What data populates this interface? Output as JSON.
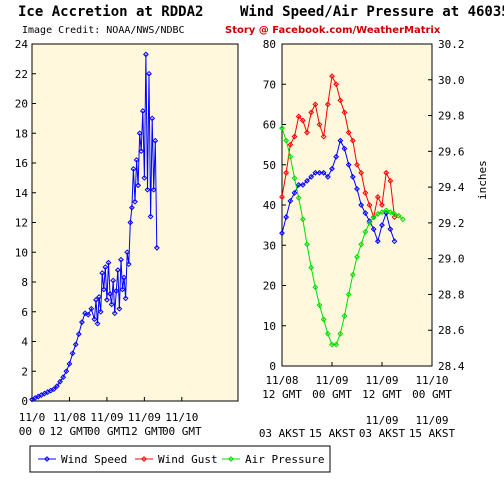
{
  "header": {
    "title_left": "Ice Accretion at RDDA2",
    "title_right": "Wind Speed/Air Pressure at 46035",
    "credit": "Image Credit: NOAA/NWS/NDBC",
    "story": "Story @ Facebook.com/WeatherMatrix"
  },
  "colors": {
    "plot_bg": "#fff8dc",
    "ice": "#0000ff",
    "wind_speed": "#0000ff",
    "wind_gust": "#ff0000",
    "air_pressure": "#00dd00",
    "story": "#cc0000"
  },
  "chart_data": [
    {
      "type": "line",
      "title": "Ice Accretion at RDDA2",
      "xlabel": "",
      "ylabel": "",
      "ylim": [
        0,
        24
      ],
      "yticks": [
        0,
        2,
        4,
        6,
        8,
        10,
        12,
        14,
        16,
        18,
        20,
        22,
        24
      ],
      "xlim_hours": [
        0,
        66
      ],
      "xticks": [
        {
          "hour": 0,
          "label1": "11/0",
          "label2": "00 0"
        },
        {
          "hour": 12,
          "label1": "11/08",
          "label2": "12 GMT"
        },
        {
          "hour": 24,
          "label1": "11/09",
          "label2": "00 GMT"
        },
        {
          "hour": 36,
          "label1": "11/09",
          "label2": "12 GMT"
        },
        {
          "hour": 48,
          "label1": "11/10",
          "label2": "00 GMT"
        }
      ],
      "grid": false,
      "series": [
        {
          "x": [
            0,
            1,
            2,
            3,
            4,
            5,
            6,
            7,
            8,
            9,
            10,
            11,
            12,
            13,
            14,
            15,
            16,
            17,
            18,
            19,
            20,
            20.5,
            21,
            21.5,
            22,
            22.5,
            23,
            23.5,
            24,
            24.5,
            25,
            25.5,
            26,
            26.5,
            27,
            27.5,
            28,
            28.5,
            29,
            29.5,
            30,
            30.5,
            31,
            31.5,
            32,
            32.5,
            33,
            33.5,
            34,
            34.5,
            35,
            35.5,
            36,
            36.5,
            37,
            37.5,
            38,
            38.5,
            39,
            39.5,
            40
          ],
          "values": [
            0.1,
            0.2,
            0.3,
            0.4,
            0.5,
            0.6,
            0.7,
            0.8,
            1.0,
            1.3,
            1.6,
            2.0,
            2.5,
            3.2,
            3.8,
            4.5,
            5.3,
            5.9,
            5.8,
            6.2,
            5.5,
            6.8,
            5.2,
            7.0,
            6.0,
            8.6,
            7.5,
            9.0,
            6.8,
            9.3,
            7.2,
            6.5,
            8.1,
            5.9,
            7.4,
            8.8,
            6.2,
            9.5,
            7.5,
            8.3,
            6.9,
            10.0,
            9.2,
            12.0,
            13.0,
            15.6,
            13.4,
            16.2,
            14.5,
            18.0,
            16.8,
            19.5,
            15.0,
            23.3,
            14.2,
            22.0,
            12.4,
            19.0,
            14.2,
            17.5,
            10.3
          ]
        }
      ]
    },
    {
      "type": "line",
      "title": "Wind Speed/Air Pressure at 46035",
      "xlabel": "",
      "ylabel": "",
      "y2label": "inches",
      "ylim": [
        0,
        80
      ],
      "yticks": [
        0,
        10,
        20,
        30,
        40,
        50,
        60,
        70,
        80
      ],
      "y2lim": [
        28.4,
        30.2
      ],
      "y2ticks": [
        28.4,
        28.6,
        28.8,
        29.0,
        29.2,
        29.4,
        29.6,
        29.8,
        30.0,
        30.2
      ],
      "xlim_hours": [
        0,
        36
      ],
      "xticks": [
        {
          "hour": 0,
          "label1": "11/08",
          "label2": "12 GMT",
          "label3": "",
          "label4": "03 AKST"
        },
        {
          "hour": 12,
          "label1": "11/09",
          "label2": "00 GMT",
          "label3": "",
          "label4": "15 AKST"
        },
        {
          "hour": 24,
          "label1": "11/09",
          "label2": "12 GMT",
          "label3": "11/09",
          "label4": "03 AKST"
        },
        {
          "hour": 36,
          "label1": "11/10",
          "label2": "00 GMT",
          "label3": "11/09",
          "label4": "15 AKST"
        }
      ],
      "legend_position": "bottom",
      "grid": false,
      "series": [
        {
          "name": "Wind Speed",
          "axis": "left",
          "x": [
            0,
            1,
            2,
            3,
            4,
            5,
            6,
            7,
            8,
            9,
            10,
            11,
            12,
            13,
            14,
            15,
            16,
            17,
            18,
            19,
            20,
            21,
            22,
            23,
            24,
            25,
            26,
            27
          ],
          "values": [
            33,
            37,
            41,
            43,
            45,
            45,
            46,
            47,
            48,
            48,
            48,
            47,
            49,
            52,
            56,
            54,
            50,
            47,
            44,
            40,
            38,
            36,
            34,
            31,
            35,
            38,
            34,
            31
          ]
        },
        {
          "name": "Wind Gust",
          "axis": "left",
          "x": [
            0,
            1,
            2,
            3,
            4,
            5,
            6,
            7,
            8,
            9,
            10,
            11,
            12,
            13,
            14,
            15,
            16,
            17,
            18,
            19,
            20,
            21,
            22,
            23,
            24,
            25,
            26,
            27
          ],
          "values": [
            42,
            48,
            55,
            57,
            62,
            61,
            58,
            63,
            65,
            60,
            57,
            65,
            72,
            70,
            66,
            63,
            58,
            56,
            50,
            48,
            43,
            40,
            37,
            42,
            40,
            48,
            46,
            37
          ]
        },
        {
          "name": "Air Pressure",
          "axis": "right",
          "x": [
            0,
            1,
            2,
            3,
            4,
            5,
            6,
            7,
            8,
            9,
            10,
            11,
            12,
            13,
            14,
            15,
            16,
            17,
            18,
            19,
            20,
            21,
            22,
            23,
            24,
            25,
            26,
            27,
            28,
            29
          ],
          "values": [
            29.73,
            29.66,
            29.57,
            29.45,
            29.34,
            29.22,
            29.08,
            28.95,
            28.84,
            28.74,
            28.66,
            28.58,
            28.52,
            28.52,
            28.58,
            28.68,
            28.8,
            28.91,
            29.01,
            29.08,
            29.15,
            29.2,
            29.23,
            29.25,
            29.26,
            29.27,
            29.26,
            29.25,
            29.24,
            29.22
          ]
        }
      ]
    }
  ]
}
